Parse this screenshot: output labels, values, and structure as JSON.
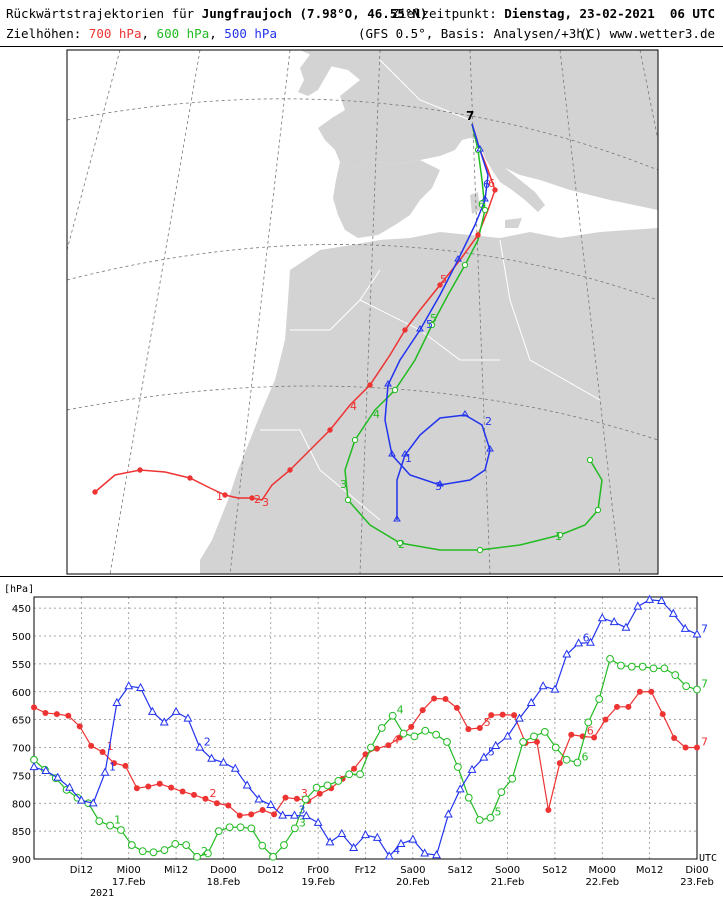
{
  "header": {
    "title_prefix": "Rückwärtstrajektorien für",
    "title_station": "Jungfraujoch (7.98°O, 46.55°N)",
    "target_label": "Zielzeitpunkt:",
    "target_value": "Dienstag, 23-02-2021  06 UTC",
    "levels_label": "Zielhöhen:",
    "levels": [
      {
        "text": "700 hPa",
        "color": "#ee3333"
      },
      {
        "text": "600 hPa",
        "color": "#22bb22"
      },
      {
        "text": "500 hPa",
        "color": "#2233ee"
      }
    ],
    "model_info": "(GFS 0.5°, Basis: Analysen/+3h)",
    "copyright": "(C) www.wetter3.de"
  },
  "map": {
    "colors": {
      "land": "#d3d3d3",
      "sea": "#ffffff",
      "grid": "#777777"
    },
    "endpoint_label": "7"
  },
  "chart_data": {
    "type": "line",
    "ylabel": "[hPa]",
    "xunit": "UTC",
    "ylim": [
      900,
      430
    ],
    "y_ticks": [
      450,
      500,
      550,
      600,
      650,
      700,
      750,
      800,
      850,
      900
    ],
    "x_range_hours": [
      0,
      168
    ],
    "x_ticks": [
      {
        "label": "Di12",
        "sub": ""
      },
      {
        "label": "Mi00",
        "sub": "17.Feb"
      },
      {
        "label": "Mi12",
        "sub": ""
      },
      {
        "label": "Do00",
        "sub": "18.Feb"
      },
      {
        "label": "Do12",
        "sub": ""
      },
      {
        "label": "Fr00",
        "sub": "19.Feb"
      },
      {
        "label": "Fr12",
        "sub": ""
      },
      {
        "label": "Sa00",
        "sub": "20.Feb"
      },
      {
        "label": "Sa12",
        "sub": ""
      },
      {
        "label": "So00",
        "sub": "21.Feb"
      },
      {
        "label": "So12",
        "sub": ""
      },
      {
        "label": "Mo00",
        "sub": "22.Feb"
      },
      {
        "label": "Mo12",
        "sub": ""
      },
      {
        "label": "Di00",
        "sub": "23.Feb"
      }
    ],
    "year_label": "2021",
    "series": [
      {
        "name": "700 hPa",
        "color": "#ee3333",
        "marker": "dot",
        "values": [
          628,
          638,
          640,
          643,
          662,
          697,
          708,
          728,
          733,
          773,
          770,
          765,
          772,
          779,
          785,
          792,
          800,
          804,
          822,
          820,
          812,
          820,
          790,
          792,
          796,
          783,
          773,
          756,
          738,
          712,
          702,
          696,
          682,
          663,
          633,
          612,
          613,
          629,
          667,
          665,
          642,
          641,
          642,
          692,
          690,
          812,
          728,
          677,
          680,
          682,
          650,
          627,
          627,
          600,
          600,
          640,
          683,
          700,
          700
        ]
      },
      {
        "name": "600 hPa",
        "color": "#22bb22",
        "marker": "circle",
        "values": [
          722,
          740,
          755,
          776,
          790,
          800,
          832,
          840,
          848,
          875,
          886,
          888,
          884,
          873,
          875,
          896,
          890,
          850,
          843,
          843,
          845,
          876,
          896,
          875,
          845,
          793,
          772,
          768,
          760,
          748,
          748,
          700,
          665,
          643,
          675,
          680,
          670,
          677,
          690,
          735,
          790,
          830,
          826,
          780,
          756,
          690,
          680,
          672,
          700,
          722,
          727,
          655,
          613,
          541,
          553,
          555,
          555,
          558,
          558,
          570,
          590,
          596
        ]
      },
      {
        "name": "500 hPa",
        "color": "#2233ee",
        "marker": "triangle",
        "values": [
          735,
          742,
          754,
          772,
          795,
          800,
          745,
          620,
          590,
          593,
          636,
          655,
          636,
          648,
          700,
          720,
          727,
          738,
          768,
          793,
          803,
          822,
          822,
          823,
          835,
          870,
          855,
          880,
          857,
          862,
          895,
          873,
          865,
          890,
          893,
          820,
          775,
          740,
          718,
          697,
          680,
          648,
          620,
          590,
          596,
          533,
          513,
          512,
          468,
          475,
          485,
          447,
          435,
          437,
          460,
          487,
          497
        ]
      }
    ],
    "day_markers": [
      {
        "series": "700 hPa",
        "labels": [
          "1",
          "2",
          "3",
          "4",
          "5",
          "6",
          "7"
        ]
      },
      {
        "series": "600 hPa",
        "labels": [
          "1",
          "2",
          "3",
          "4",
          "5",
          "6",
          "7"
        ]
      },
      {
        "series": "500 hPa",
        "labels": [
          "1",
          "2",
          "3",
          "4",
          "5",
          "6",
          "7"
        ]
      }
    ]
  }
}
